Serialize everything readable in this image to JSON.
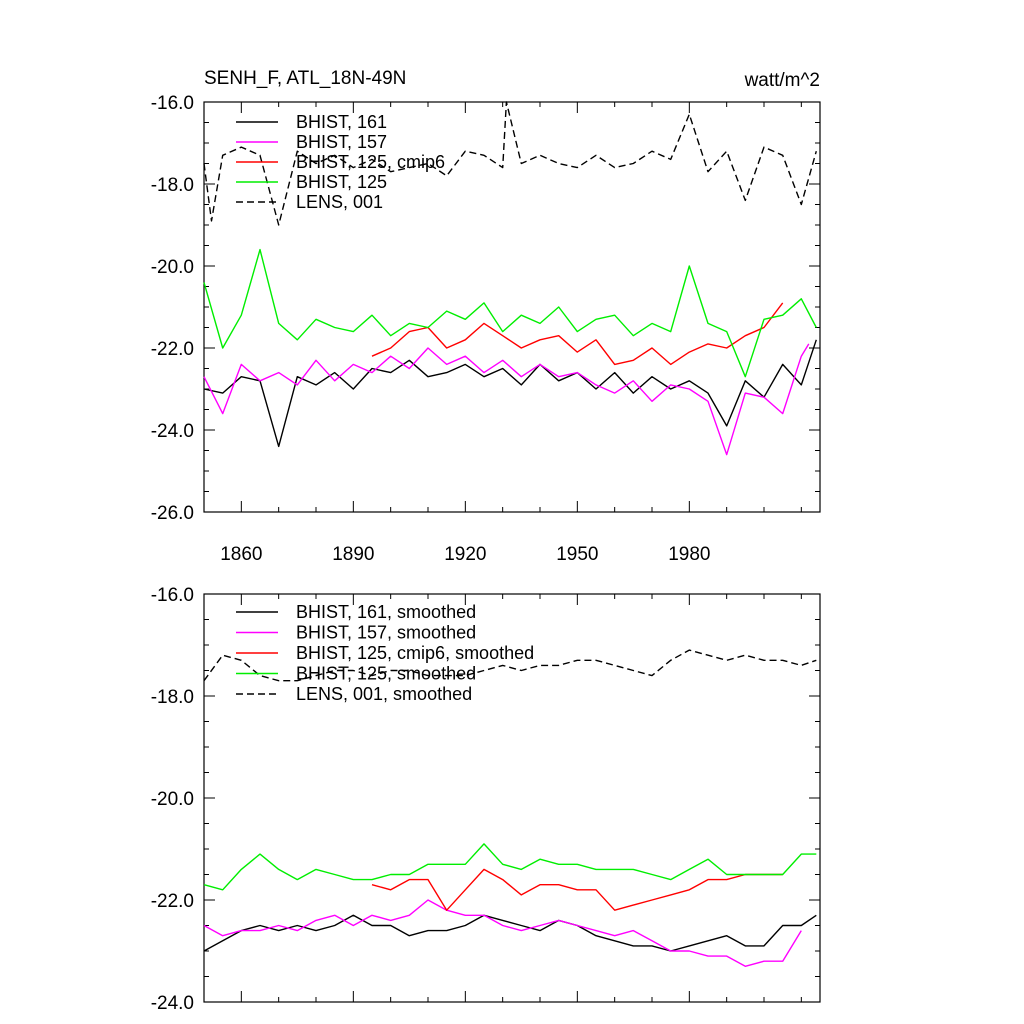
{
  "chart_data": [
    {
      "type": "line",
      "title": "SENH_F, ATL_18N-49N",
      "units": "watt/m^2",
      "xlabel": "",
      "ylabel": "",
      "xlim": [
        1850,
        2015
      ],
      "ylim": [
        -26.0,
        -16.0
      ],
      "xticks": [
        1860,
        1890,
        1920,
        1950,
        1980
      ],
      "xtick_labels": [
        "1860",
        "1890",
        "1920",
        "1950",
        "1980"
      ],
      "yticks": [
        -26.0,
        -24.0,
        -22.0,
        -20.0,
        -18.0,
        -16.0
      ],
      "ytick_labels": [
        "-26.0",
        "-24.0",
        "-22.0",
        "-20.0",
        "-18.0",
        "-16.0"
      ],
      "legend_position": "top-left",
      "series": [
        {
          "name": "BHIST, 161",
          "color": "#000000",
          "dash": "solid",
          "x": [
            1850,
            1855,
            1860,
            1865,
            1870,
            1875,
            1880,
            1885,
            1890,
            1895,
            1900,
            1905,
            1910,
            1915,
            1920,
            1925,
            1930,
            1935,
            1940,
            1945,
            1950,
            1955,
            1960,
            1965,
            1970,
            1975,
            1980,
            1985,
            1990,
            1995,
            2000,
            2005,
            2010,
            2014
          ],
          "y": [
            -23.0,
            -23.1,
            -22.7,
            -22.8,
            -24.4,
            -22.7,
            -22.9,
            -22.6,
            -23.0,
            -22.5,
            -22.6,
            -22.3,
            -22.7,
            -22.6,
            -22.4,
            -22.7,
            -22.5,
            -22.9,
            -22.4,
            -22.8,
            -22.6,
            -23.0,
            -22.6,
            -23.1,
            -22.7,
            -23.0,
            -22.8,
            -23.1,
            -23.9,
            -22.8,
            -23.2,
            -22.4,
            -22.9,
            -21.8
          ]
        },
        {
          "name": "BHIST, 157",
          "color": "#ff00ff",
          "dash": "solid",
          "x": [
            1850,
            1855,
            1860,
            1865,
            1870,
            1875,
            1880,
            1885,
            1890,
            1895,
            1900,
            1905,
            1910,
            1915,
            1920,
            1925,
            1930,
            1935,
            1940,
            1945,
            1950,
            1955,
            1960,
            1965,
            1970,
            1975,
            1980,
            1985,
            1990,
            1995,
            2000,
            2005,
            2010,
            2012
          ],
          "y": [
            -22.7,
            -23.6,
            -22.4,
            -22.8,
            -22.6,
            -22.9,
            -22.3,
            -22.8,
            -22.4,
            -22.6,
            -22.2,
            -22.5,
            -22.0,
            -22.4,
            -22.2,
            -22.6,
            -22.3,
            -22.7,
            -22.4,
            -22.7,
            -22.6,
            -22.9,
            -23.1,
            -22.8,
            -23.3,
            -22.9,
            -23.0,
            -23.3,
            -24.6,
            -23.1,
            -23.2,
            -23.6,
            -22.2,
            -21.9
          ]
        },
        {
          "name": "BHIST, 125, cmip6",
          "color": "#ff0000",
          "dash": "solid",
          "x": [
            1895,
            1900,
            1905,
            1910,
            1915,
            1920,
            1925,
            1930,
            1935,
            1940,
            1945,
            1950,
            1955,
            1960,
            1965,
            1970,
            1975,
            1980,
            1985,
            1990,
            1995,
            2000,
            2005
          ],
          "y": [
            -22.2,
            -22.0,
            -21.6,
            -21.5,
            -22.0,
            -21.8,
            -21.4,
            -21.7,
            -22.0,
            -21.8,
            -21.7,
            -22.1,
            -21.8,
            -22.4,
            -22.3,
            -22.0,
            -22.4,
            -22.1,
            -21.9,
            -22.0,
            -21.7,
            -21.5,
            -20.9
          ]
        },
        {
          "name": "BHIST, 125",
          "color": "#00ee00",
          "dash": "solid",
          "x": [
            1850,
            1855,
            1860,
            1865,
            1870,
            1875,
            1880,
            1885,
            1890,
            1895,
            1900,
            1905,
            1910,
            1915,
            1920,
            1925,
            1930,
            1935,
            1940,
            1945,
            1950,
            1955,
            1960,
            1965,
            1970,
            1975,
            1980,
            1985,
            1990,
            1995,
            2000,
            2005,
            2010,
            2014
          ],
          "y": [
            -20.4,
            -22.0,
            -21.2,
            -19.6,
            -21.4,
            -21.8,
            -21.3,
            -21.5,
            -21.6,
            -21.2,
            -21.7,
            -21.4,
            -21.5,
            -21.1,
            -21.3,
            -20.9,
            -21.6,
            -21.2,
            -21.4,
            -21.0,
            -21.6,
            -21.3,
            -21.2,
            -21.7,
            -21.4,
            -21.6,
            -20.0,
            -21.4,
            -21.6,
            -22.7,
            -21.3,
            -21.2,
            -20.8,
            -21.5
          ]
        },
        {
          "name": "LENS, 001",
          "color": "#000000",
          "dash": "dashed",
          "x": [
            1850,
            1852,
            1855,
            1860,
            1865,
            1870,
            1875,
            1880,
            1885,
            1890,
            1895,
            1900,
            1905,
            1910,
            1915,
            1920,
            1925,
            1930,
            1931,
            1935,
            1940,
            1945,
            1950,
            1955,
            1960,
            1965,
            1970,
            1975,
            1980,
            1985,
            1990,
            1995,
            2000,
            2005,
            2010,
            2014
          ],
          "y": [
            -17.5,
            -18.9,
            -17.3,
            -17.1,
            -17.3,
            -19.0,
            -17.2,
            -17.5,
            -17.3,
            -17.6,
            -17.4,
            -17.7,
            -17.6,
            -17.5,
            -17.8,
            -17.2,
            -17.3,
            -17.6,
            -16.0,
            -17.5,
            -17.3,
            -17.5,
            -17.6,
            -17.3,
            -17.6,
            -17.5,
            -17.2,
            -17.4,
            -16.3,
            -17.7,
            -17.2,
            -18.4,
            -17.1,
            -17.3,
            -18.5,
            -17.2
          ]
        }
      ]
    },
    {
      "type": "line",
      "title": "",
      "xlabel": "",
      "ylabel": "",
      "xlim": [
        1850,
        2015
      ],
      "ylim": [
        -24.0,
        -16.0
      ],
      "xticks": [
        1860,
        1890,
        1920,
        1950,
        1980
      ],
      "yticks": [
        -24.0,
        -22.0,
        -20.0,
        -18.0,
        -16.0
      ],
      "ytick_labels": [
        "-24.0",
        "-22.0",
        "-20.0",
        "-18.0",
        "-16.0"
      ],
      "legend_position": "top-left",
      "series": [
        {
          "name": "BHIST, 161, smoothed",
          "color": "#000000",
          "dash": "solid",
          "x": [
            1850,
            1855,
            1860,
            1865,
            1870,
            1875,
            1880,
            1885,
            1890,
            1895,
            1900,
            1905,
            1910,
            1915,
            1920,
            1925,
            1930,
            1935,
            1940,
            1945,
            1950,
            1955,
            1960,
            1965,
            1970,
            1975,
            1980,
            1985,
            1990,
            1995,
            2000,
            2005,
            2010,
            2014
          ],
          "y": [
            -23.0,
            -22.8,
            -22.6,
            -22.5,
            -22.6,
            -22.5,
            -22.6,
            -22.5,
            -22.3,
            -22.5,
            -22.5,
            -22.7,
            -22.6,
            -22.6,
            -22.5,
            -22.3,
            -22.4,
            -22.5,
            -22.6,
            -22.4,
            -22.5,
            -22.7,
            -22.8,
            -22.9,
            -22.9,
            -23.0,
            -22.9,
            -22.8,
            -22.7,
            -22.9,
            -22.9,
            -22.5,
            -22.5,
            -22.3
          ]
        },
        {
          "name": "BHIST, 157, smoothed",
          "color": "#ff00ff",
          "dash": "solid",
          "x": [
            1850,
            1855,
            1860,
            1865,
            1870,
            1875,
            1880,
            1885,
            1890,
            1895,
            1900,
            1905,
            1910,
            1915,
            1920,
            1925,
            1930,
            1935,
            1940,
            1945,
            1950,
            1955,
            1960,
            1965,
            1970,
            1975,
            1980,
            1985,
            1990,
            1995,
            2000,
            2005,
            2010
          ],
          "y": [
            -22.5,
            -22.7,
            -22.6,
            -22.6,
            -22.5,
            -22.6,
            -22.4,
            -22.3,
            -22.5,
            -22.3,
            -22.4,
            -22.3,
            -22.0,
            -22.2,
            -22.3,
            -22.3,
            -22.5,
            -22.6,
            -22.5,
            -22.4,
            -22.5,
            -22.6,
            -22.7,
            -22.6,
            -22.8,
            -23.0,
            -23.0,
            -23.1,
            -23.1,
            -23.3,
            -23.2,
            -23.2,
            -22.6
          ]
        },
        {
          "name": "BHIST, 125, cmip6, smoothed",
          "color": "#ff0000",
          "dash": "solid",
          "x": [
            1895,
            1900,
            1905,
            1910,
            1915,
            1920,
            1925,
            1930,
            1935,
            1940,
            1945,
            1950,
            1955,
            1960,
            1965,
            1970,
            1975,
            1980,
            1985,
            1990,
            1995,
            2000,
            2005
          ],
          "y": [
            -21.7,
            -21.8,
            -21.6,
            -21.6,
            -22.2,
            -21.8,
            -21.4,
            -21.6,
            -21.9,
            -21.7,
            -21.7,
            -21.8,
            -21.8,
            -22.2,
            -22.1,
            -22.0,
            -21.9,
            -21.8,
            -21.6,
            -21.6,
            -21.5,
            -21.5,
            -21.5
          ]
        },
        {
          "name": "BHIST, 125, smoothed",
          "color": "#00ee00",
          "dash": "solid",
          "x": [
            1850,
            1855,
            1860,
            1865,
            1870,
            1875,
            1880,
            1885,
            1890,
            1895,
            1900,
            1905,
            1910,
            1915,
            1920,
            1925,
            1930,
            1935,
            1940,
            1945,
            1950,
            1955,
            1960,
            1965,
            1970,
            1975,
            1980,
            1985,
            1990,
            1995,
            2000,
            2005,
            2010,
            2014
          ],
          "y": [
            -21.7,
            -21.8,
            -21.4,
            -21.1,
            -21.4,
            -21.6,
            -21.4,
            -21.5,
            -21.6,
            -21.6,
            -21.5,
            -21.5,
            -21.3,
            -21.3,
            -21.3,
            -20.9,
            -21.3,
            -21.4,
            -21.2,
            -21.3,
            -21.3,
            -21.4,
            -21.4,
            -21.4,
            -21.5,
            -21.6,
            -21.4,
            -21.2,
            -21.5,
            -21.5,
            -21.5,
            -21.5,
            -21.1,
            -21.1
          ]
        },
        {
          "name": "LENS, 001, smoothed",
          "color": "#000000",
          "dash": "dashed",
          "x": [
            1850,
            1855,
            1860,
            1865,
            1870,
            1875,
            1880,
            1885,
            1890,
            1895,
            1900,
            1905,
            1910,
            1915,
            1920,
            1925,
            1930,
            1935,
            1940,
            1945,
            1950,
            1955,
            1960,
            1965,
            1970,
            1975,
            1980,
            1985,
            1990,
            1995,
            2000,
            2005,
            2010,
            2014
          ],
          "y": [
            -17.7,
            -17.2,
            -17.3,
            -17.6,
            -17.7,
            -17.7,
            -17.6,
            -17.5,
            -17.5,
            -17.6,
            -17.5,
            -17.5,
            -17.6,
            -17.6,
            -17.6,
            -17.5,
            -17.4,
            -17.5,
            -17.4,
            -17.4,
            -17.3,
            -17.3,
            -17.4,
            -17.5,
            -17.6,
            -17.3,
            -17.1,
            -17.2,
            -17.3,
            -17.2,
            -17.3,
            -17.3,
            -17.4,
            -17.3
          ]
        }
      ]
    }
  ]
}
